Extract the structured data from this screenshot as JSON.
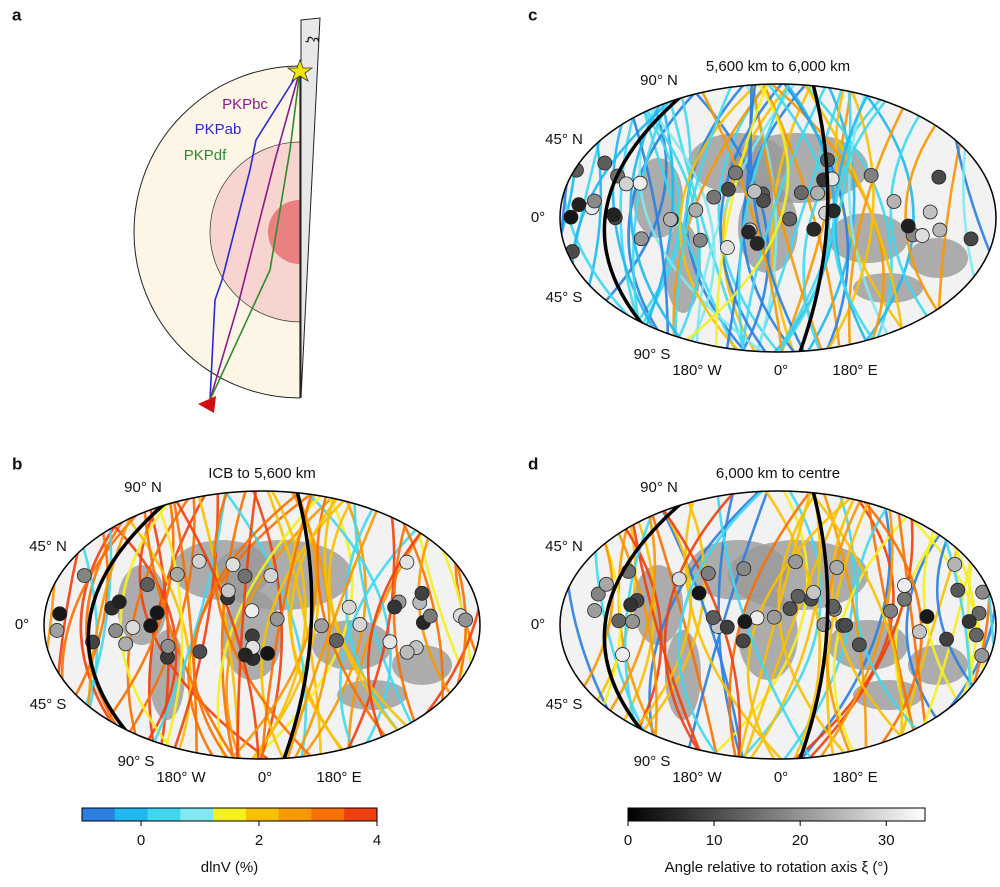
{
  "panel_a": {
    "label": "a",
    "rays": [
      {
        "name": "PKPbc",
        "color": "#8b1a8b"
      },
      {
        "name": "PKPab",
        "color": "#2a2ad0"
      },
      {
        "name": "PKPdf",
        "color": "#2e8b2e"
      }
    ],
    "axis_symbol": "ξ"
  },
  "maps": [
    {
      "label": "c",
      "title": "5,600 km to 6,000 km",
      "lat_labels": [
        "90° N",
        "45° N",
        "0°",
        "45° S",
        "90° S"
      ],
      "lon_labels": [
        "180° W",
        "0°",
        "180° E"
      ]
    },
    {
      "label": "b",
      "title": "ICB to 5,600 km",
      "lat_labels": [
        "90° N",
        "45° N",
        "0°",
        "45° S",
        "90° S"
      ],
      "lon_labels": [
        "180° W",
        "0°",
        "180° E"
      ]
    },
    {
      "label": "d",
      "title": "6,000 km to centre",
      "lat_labels": [
        "90° N",
        "45° N",
        "0°",
        "45° S",
        "90° S"
      ],
      "lon_labels": [
        "180° W",
        "0°",
        "180° E"
      ]
    }
  ],
  "colorbars": [
    {
      "label": "dlnV (%)",
      "lim": [
        -1,
        4
      ],
      "ticks": [
        0,
        2,
        4
      ],
      "colors": [
        "#2a7fe0",
        "#1fb8f0",
        "#3fd8f0",
        "#80e8f0",
        "#f5f020",
        "#f8c000",
        "#f89800",
        "#f87000",
        "#f04010"
      ]
    },
    {
      "label": "Angle relative to rotation axis ξ (°)",
      "lim": [
        0,
        34.5
      ],
      "ticks": [
        0,
        10,
        20,
        30
      ],
      "colors": [
        "#000000",
        "#ffffff"
      ]
    }
  ]
}
